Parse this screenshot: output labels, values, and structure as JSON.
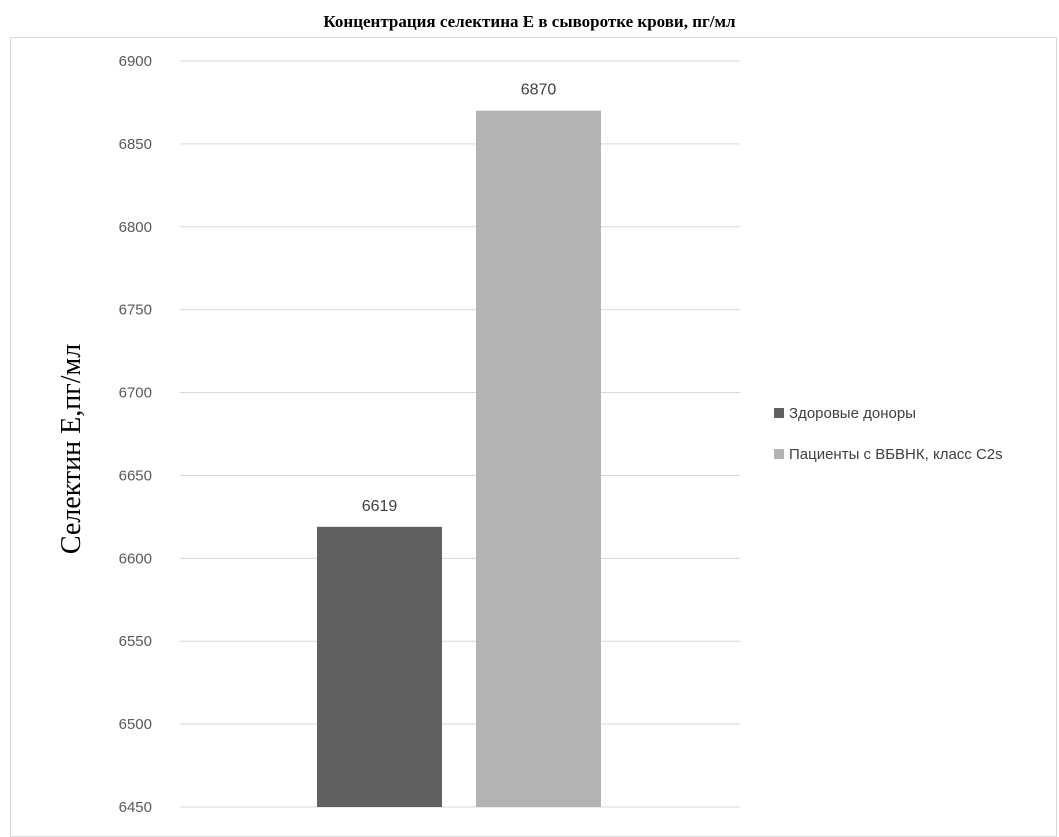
{
  "chart_data": {
    "type": "bar",
    "title": "Концентрация селектина Е в сыворотке крови, пг/мл",
    "ylabel": "Селектин Е,пг/мл",
    "xlabel": "",
    "ylim": [
      6450,
      6900
    ],
    "yticks": [
      6450,
      6500,
      6550,
      6600,
      6650,
      6700,
      6750,
      6800,
      6850,
      6900
    ],
    "grid": true,
    "legend_position": "right",
    "series": [
      {
        "name": "Здоровые доноры",
        "value": 6619,
        "label": "6619",
        "color": "#636060"
      },
      {
        "name": "Пациенты с ВБВНК, класс C2s",
        "value": 6870,
        "label": "6870",
        "color": "#b3b3b3"
      }
    ]
  }
}
